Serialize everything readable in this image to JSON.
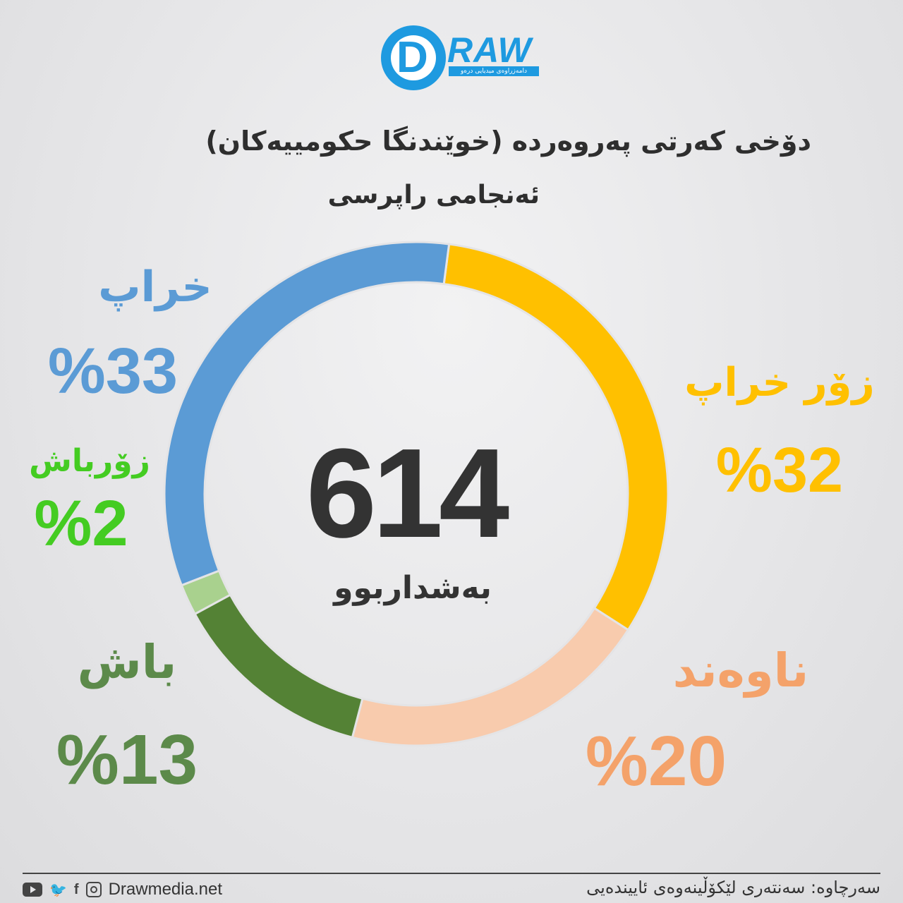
{
  "brand": {
    "logo_text": "RAW",
    "logo_letter": "D",
    "logo_tagline": "دامەزراوەی میدیایی درەو"
  },
  "header": {
    "title": "دۆخی کەرتی پەروەردە (خوێندنگا حکومییەکان)",
    "subtitle": "ئەنجامی راپرسی"
  },
  "center": {
    "total": "614",
    "label": "بەشداربوو"
  },
  "chart_data": {
    "type": "pie",
    "donut": true,
    "total": 614,
    "slices": [
      {
        "label": "زۆر خراپ",
        "value": 32,
        "value_text": "%32",
        "color": "#ffc000"
      },
      {
        "label": "ناوەند",
        "value": 20,
        "value_text": "%20",
        "color": "#f8cbad"
      },
      {
        "label": "باش",
        "value": 13,
        "value_text": "%13",
        "color": "#548235"
      },
      {
        "label": "زۆرباش",
        "value": 2,
        "value_text": "%2",
        "color": "#a9d18e"
      },
      {
        "label": "خراپ",
        "value": 33,
        "value_text": "%33",
        "color": "#5b9bd5"
      }
    ],
    "label_colors": {
      "very_bad": "#ffc000",
      "medium": "#f4a26a",
      "good": "#5c8a4a",
      "very_good": "#44cc22",
      "bad": "#5b9bd5"
    }
  },
  "footer": {
    "social_icons": [
      "youtube-icon",
      "twitter-icon",
      "facebook-icon",
      "instagram-icon"
    ],
    "website": "Drawmedia.net",
    "source": "سەرچاوە: سەنتەری لێکۆڵینەوەی ئاییندەیی"
  }
}
